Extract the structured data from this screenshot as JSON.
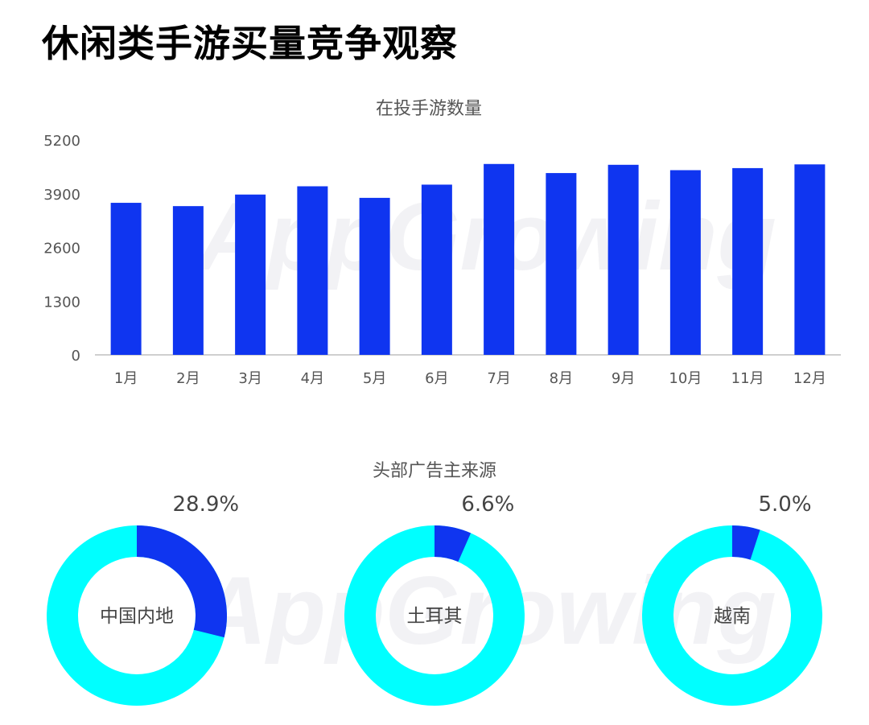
{
  "page_title": "休闲类手游买量竞争观察",
  "watermark": "AppGrowing",
  "colors": {
    "bar": "#0f35f0",
    "donut_main": "#00ffff",
    "donut_highlight": "#0f35f0",
    "axis": "#bfbfbf",
    "text": "#555555"
  },
  "chart_data": [
    {
      "type": "bar",
      "title": "在投手游数量",
      "categories": [
        "1月",
        "2月",
        "3月",
        "4月",
        "5月",
        "6月",
        "7月",
        "8月",
        "9月",
        "10月",
        "11月",
        "12月"
      ],
      "values": [
        3680,
        3600,
        3880,
        4080,
        3800,
        4120,
        4620,
        4400,
        4600,
        4470,
        4520,
        4610
      ],
      "ylim": [
        0,
        5200
      ],
      "yticks": [
        "0",
        "1300",
        "2600",
        "3900",
        "5200"
      ],
      "ytick_values": [
        0,
        1300,
        2600,
        3900,
        5200
      ],
      "grid": false
    },
    {
      "type": "pie",
      "title": "头部广告主来源",
      "series": [
        {
          "label": "中国内地",
          "value": 28.9,
          "value_label": "28.9%"
        },
        {
          "label": "土耳其",
          "value": 6.6,
          "value_label": "6.6%"
        },
        {
          "label": "越南",
          "value": 5.0,
          "value_label": "5.0%"
        }
      ]
    }
  ]
}
